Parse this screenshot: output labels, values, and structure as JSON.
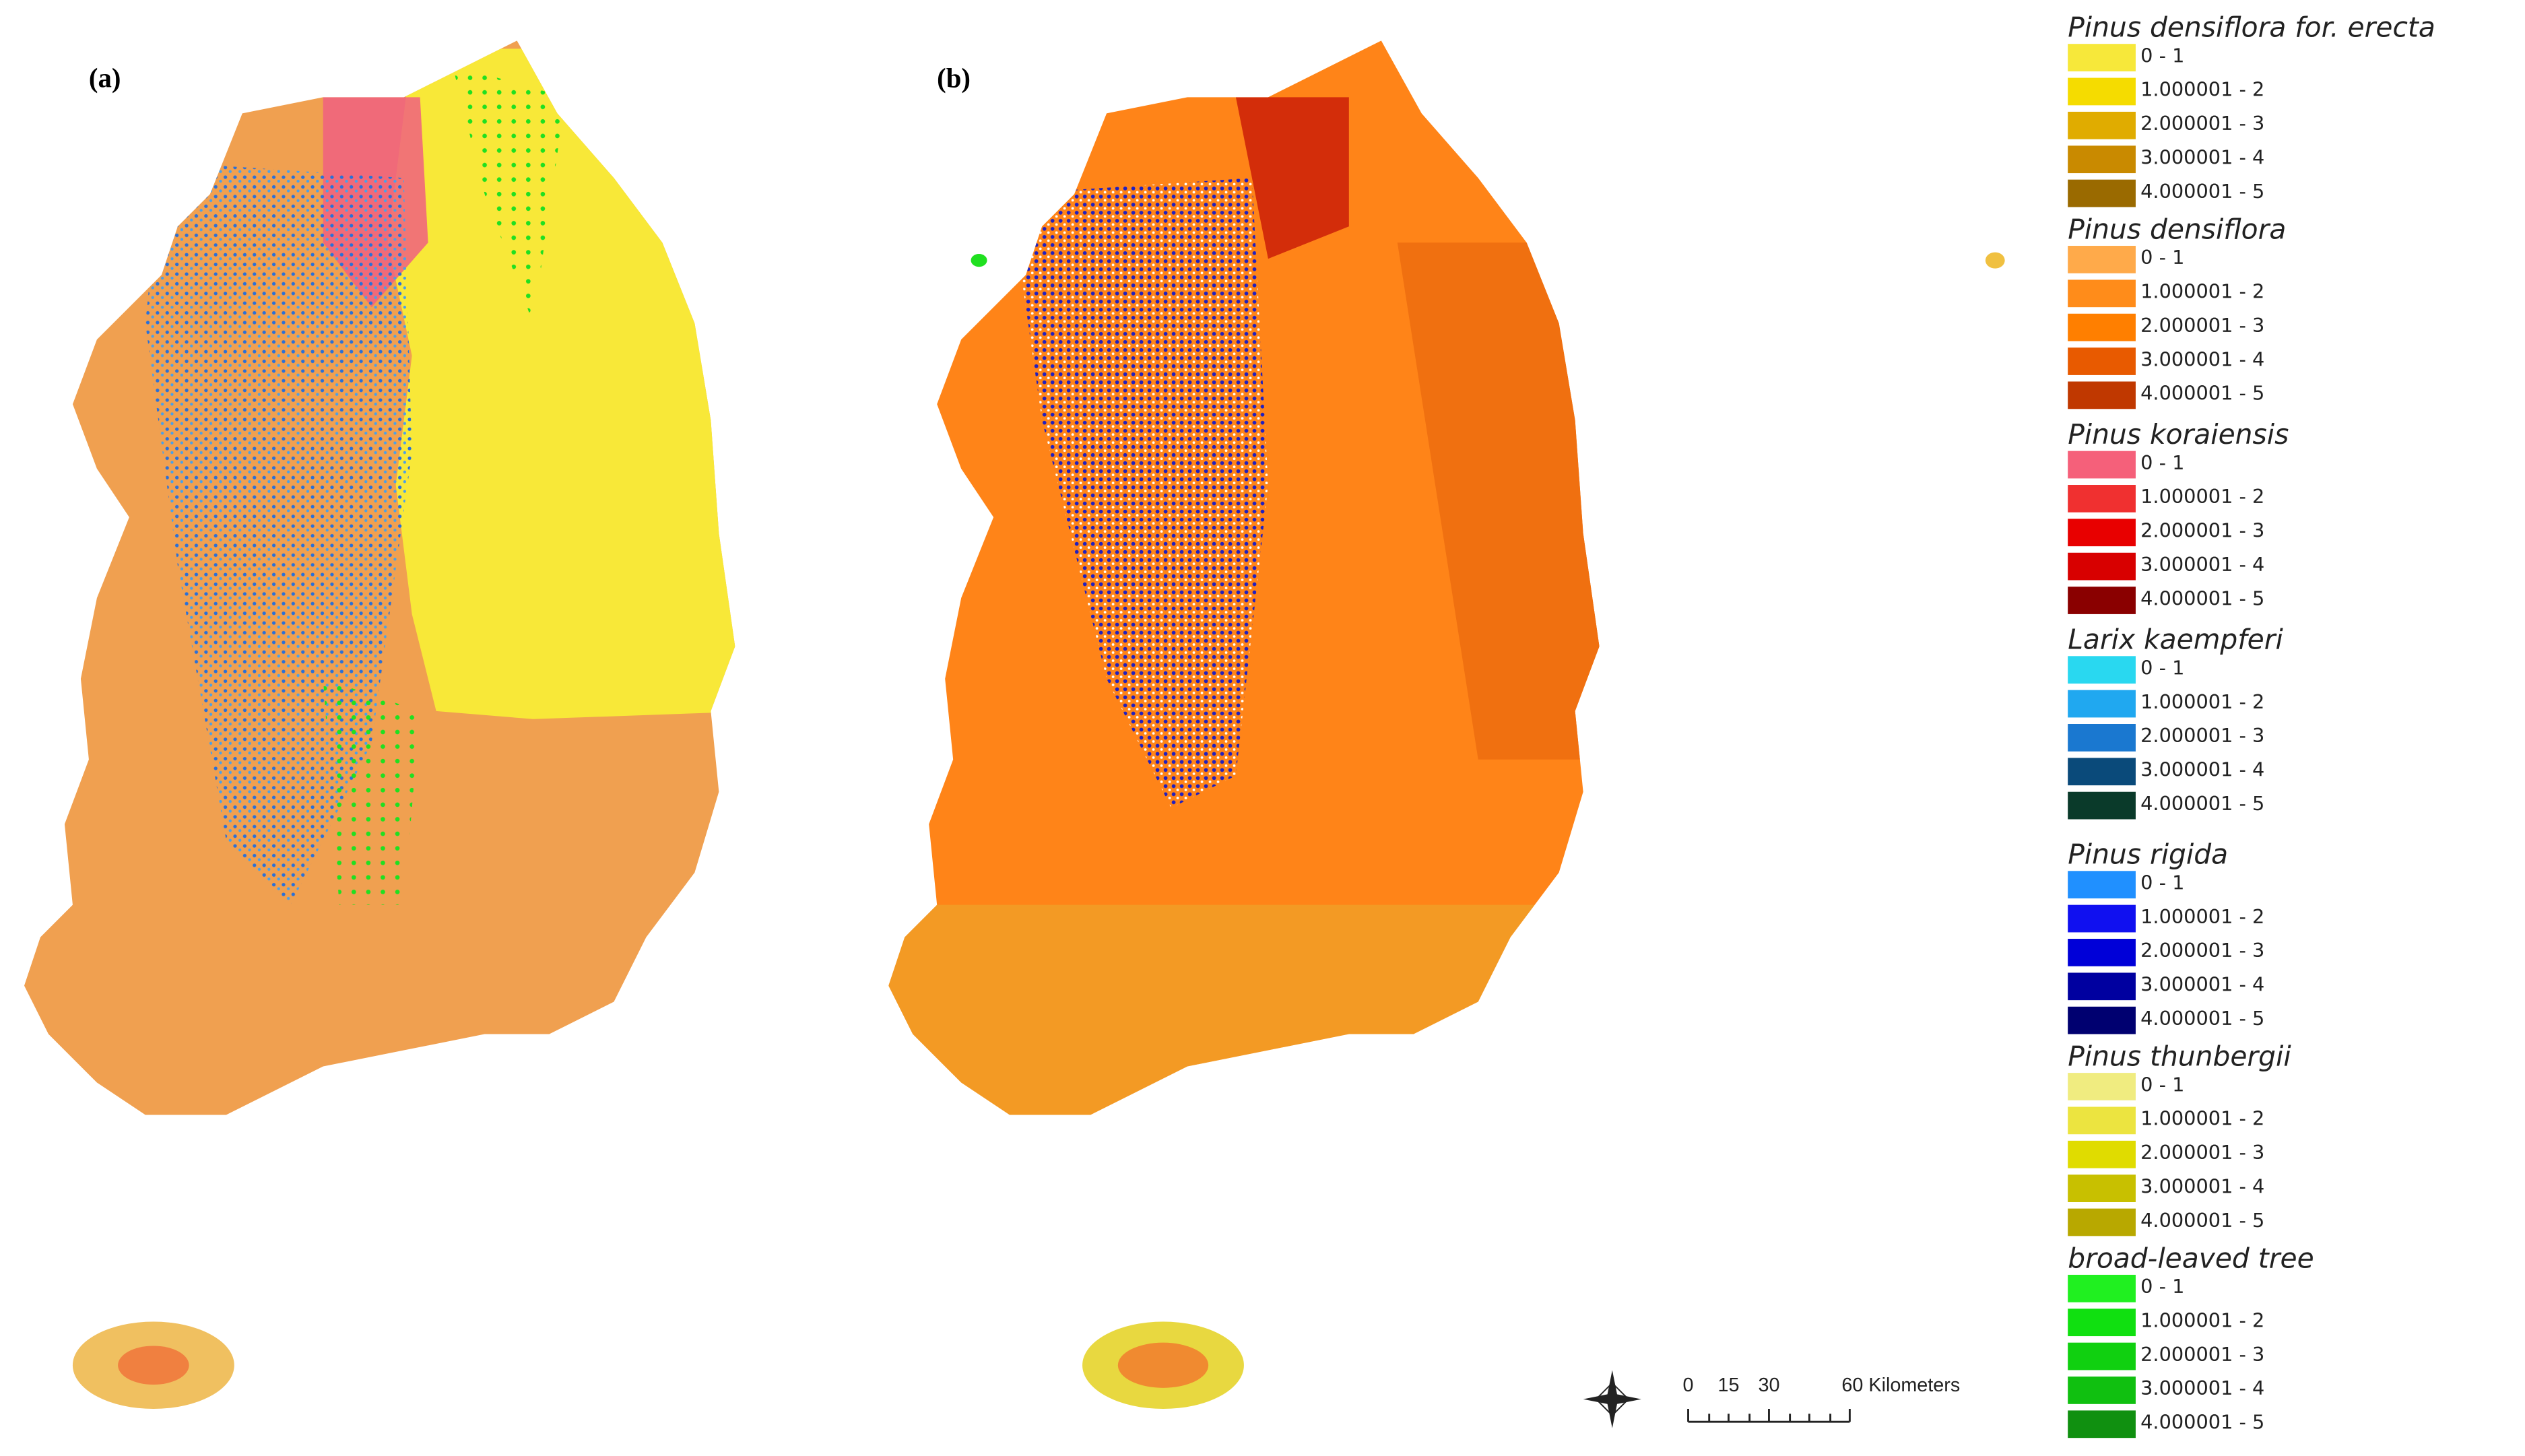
{
  "panels": [
    {
      "label": "(a)"
    },
    {
      "label": "(b)"
    }
  ],
  "legend": [
    {
      "title": "Pinus densiflora for. erecta",
      "classes": [
        {
          "label": "0 - 1",
          "color": "#f7e83a"
        },
        {
          "label": "1.000001 - 2",
          "color": "#f5dc00"
        },
        {
          "label": "2.000001 - 3",
          "color": "#e0ac00"
        },
        {
          "label": "3.000001 - 4",
          "color": "#c98a00"
        },
        {
          "label": "4.000001 - 5",
          "color": "#9a6a00"
        }
      ]
    },
    {
      "title": "Pinus densiflora",
      "classes": [
        {
          "label": "0 - 1",
          "color": "#ffaa4a"
        },
        {
          "label": "1.000001 - 2",
          "color": "#ff8c1a"
        },
        {
          "label": "2.000001 - 3",
          "color": "#ff7f00"
        },
        {
          "label": "3.000001 - 4",
          "color": "#e85a00"
        },
        {
          "label": "4.000001 - 5",
          "color": "#c03800"
        }
      ]
    },
    {
      "title": "Pinus koraiensis",
      "classes": [
        {
          "label": "0 - 1",
          "color": "#f5607a"
        },
        {
          "label": "1.000001 - 2",
          "color": "#f03030"
        },
        {
          "label": "2.000001 - 3",
          "color": "#e80000"
        },
        {
          "label": "3.000001 - 4",
          "color": "#d80000"
        },
        {
          "label": "4.000001 - 5",
          "color": "#8a0000"
        }
      ]
    },
    {
      "title": "Larix kaempferi",
      "classes": [
        {
          "label": "0 - 1",
          "color": "#29d8f0"
        },
        {
          "label": "1.000001 - 2",
          "color": "#20a8f0"
        },
        {
          "label": "2.000001 - 3",
          "color": "#1a78d0"
        },
        {
          "label": "3.000001 - 4",
          "color": "#0a4a7a"
        },
        {
          "label": "4.000001 - 5",
          "color": "#0a3a2a"
        }
      ]
    },
    {
      "title": "Pinus rigida",
      "classes": [
        {
          "label": "0 - 1",
          "color": "#2090ff"
        },
        {
          "label": "1.000001 - 2",
          "color": "#1010f0"
        },
        {
          "label": "2.000001 - 3",
          "color": "#0000d8"
        },
        {
          "label": "3.000001 - 4",
          "color": "#0000a0"
        },
        {
          "label": "4.000001 - 5",
          "color": "#000070"
        }
      ]
    },
    {
      "title": "Pinus thunbergii",
      "classes": [
        {
          "label": "0 - 1",
          "color": "#f0ec80"
        },
        {
          "label": "1.000001 - 2",
          "color": "#ece440"
        },
        {
          "label": "2.000001 - 3",
          "color": "#e0dc00"
        },
        {
          "label": "3.000001 - 4",
          "color": "#c8c000"
        },
        {
          "label": "4.000001 - 5",
          "color": "#b8a800"
        }
      ]
    },
    {
      "title": "broad-leaved tree",
      "classes": [
        {
          "label": "0 - 1",
          "color": "#20f020"
        },
        {
          "label": "1.000001 - 2",
          "color": "#10e010"
        },
        {
          "label": "2.000001 - 3",
          "color": "#10d010"
        },
        {
          "label": "3.000001 - 4",
          "color": "#10c010"
        },
        {
          "label": "4.000001 - 5",
          "color": "#109010"
        }
      ]
    }
  ],
  "scale_bar": {
    "labels": [
      "0",
      "15",
      "30",
      "60 Kilometers"
    ]
  }
}
